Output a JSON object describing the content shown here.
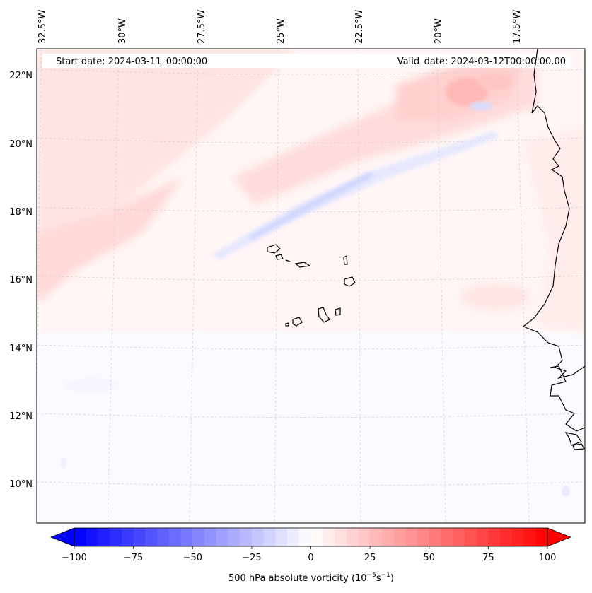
{
  "map": {
    "start_date": "Start date: 2024-03-11_00:00:00",
    "valid_date": "Valid_date: 2024-03-12T00:00:00.00",
    "lon_labels": [
      "32.5°W",
      "30°W",
      "27.5°W",
      "25°W",
      "22.5°W",
      "20°W",
      "17.5°W"
    ],
    "lat_labels": [
      "22°N",
      "20°N",
      "18°N",
      "16°N",
      "14°N",
      "12°N",
      "10°N"
    ],
    "gridlines": true,
    "field": "500 hPa absolute vorticity"
  },
  "colorbar": {
    "ticks": [
      "−100",
      "−75",
      "−50",
      "−25",
      "0",
      "25",
      "50",
      "75",
      "100"
    ],
    "label_main": "500 hPa absolute vorticity (10",
    "label_exp1": "−5",
    "label_mid": "s",
    "label_exp2": "−1",
    "label_end": ")",
    "range": [
      -100,
      100
    ],
    "colormap": "bwr",
    "low_color": "#0000ff",
    "mid_color": "#ffffff",
    "high_color": "#ff0000",
    "extend": "both"
  }
}
